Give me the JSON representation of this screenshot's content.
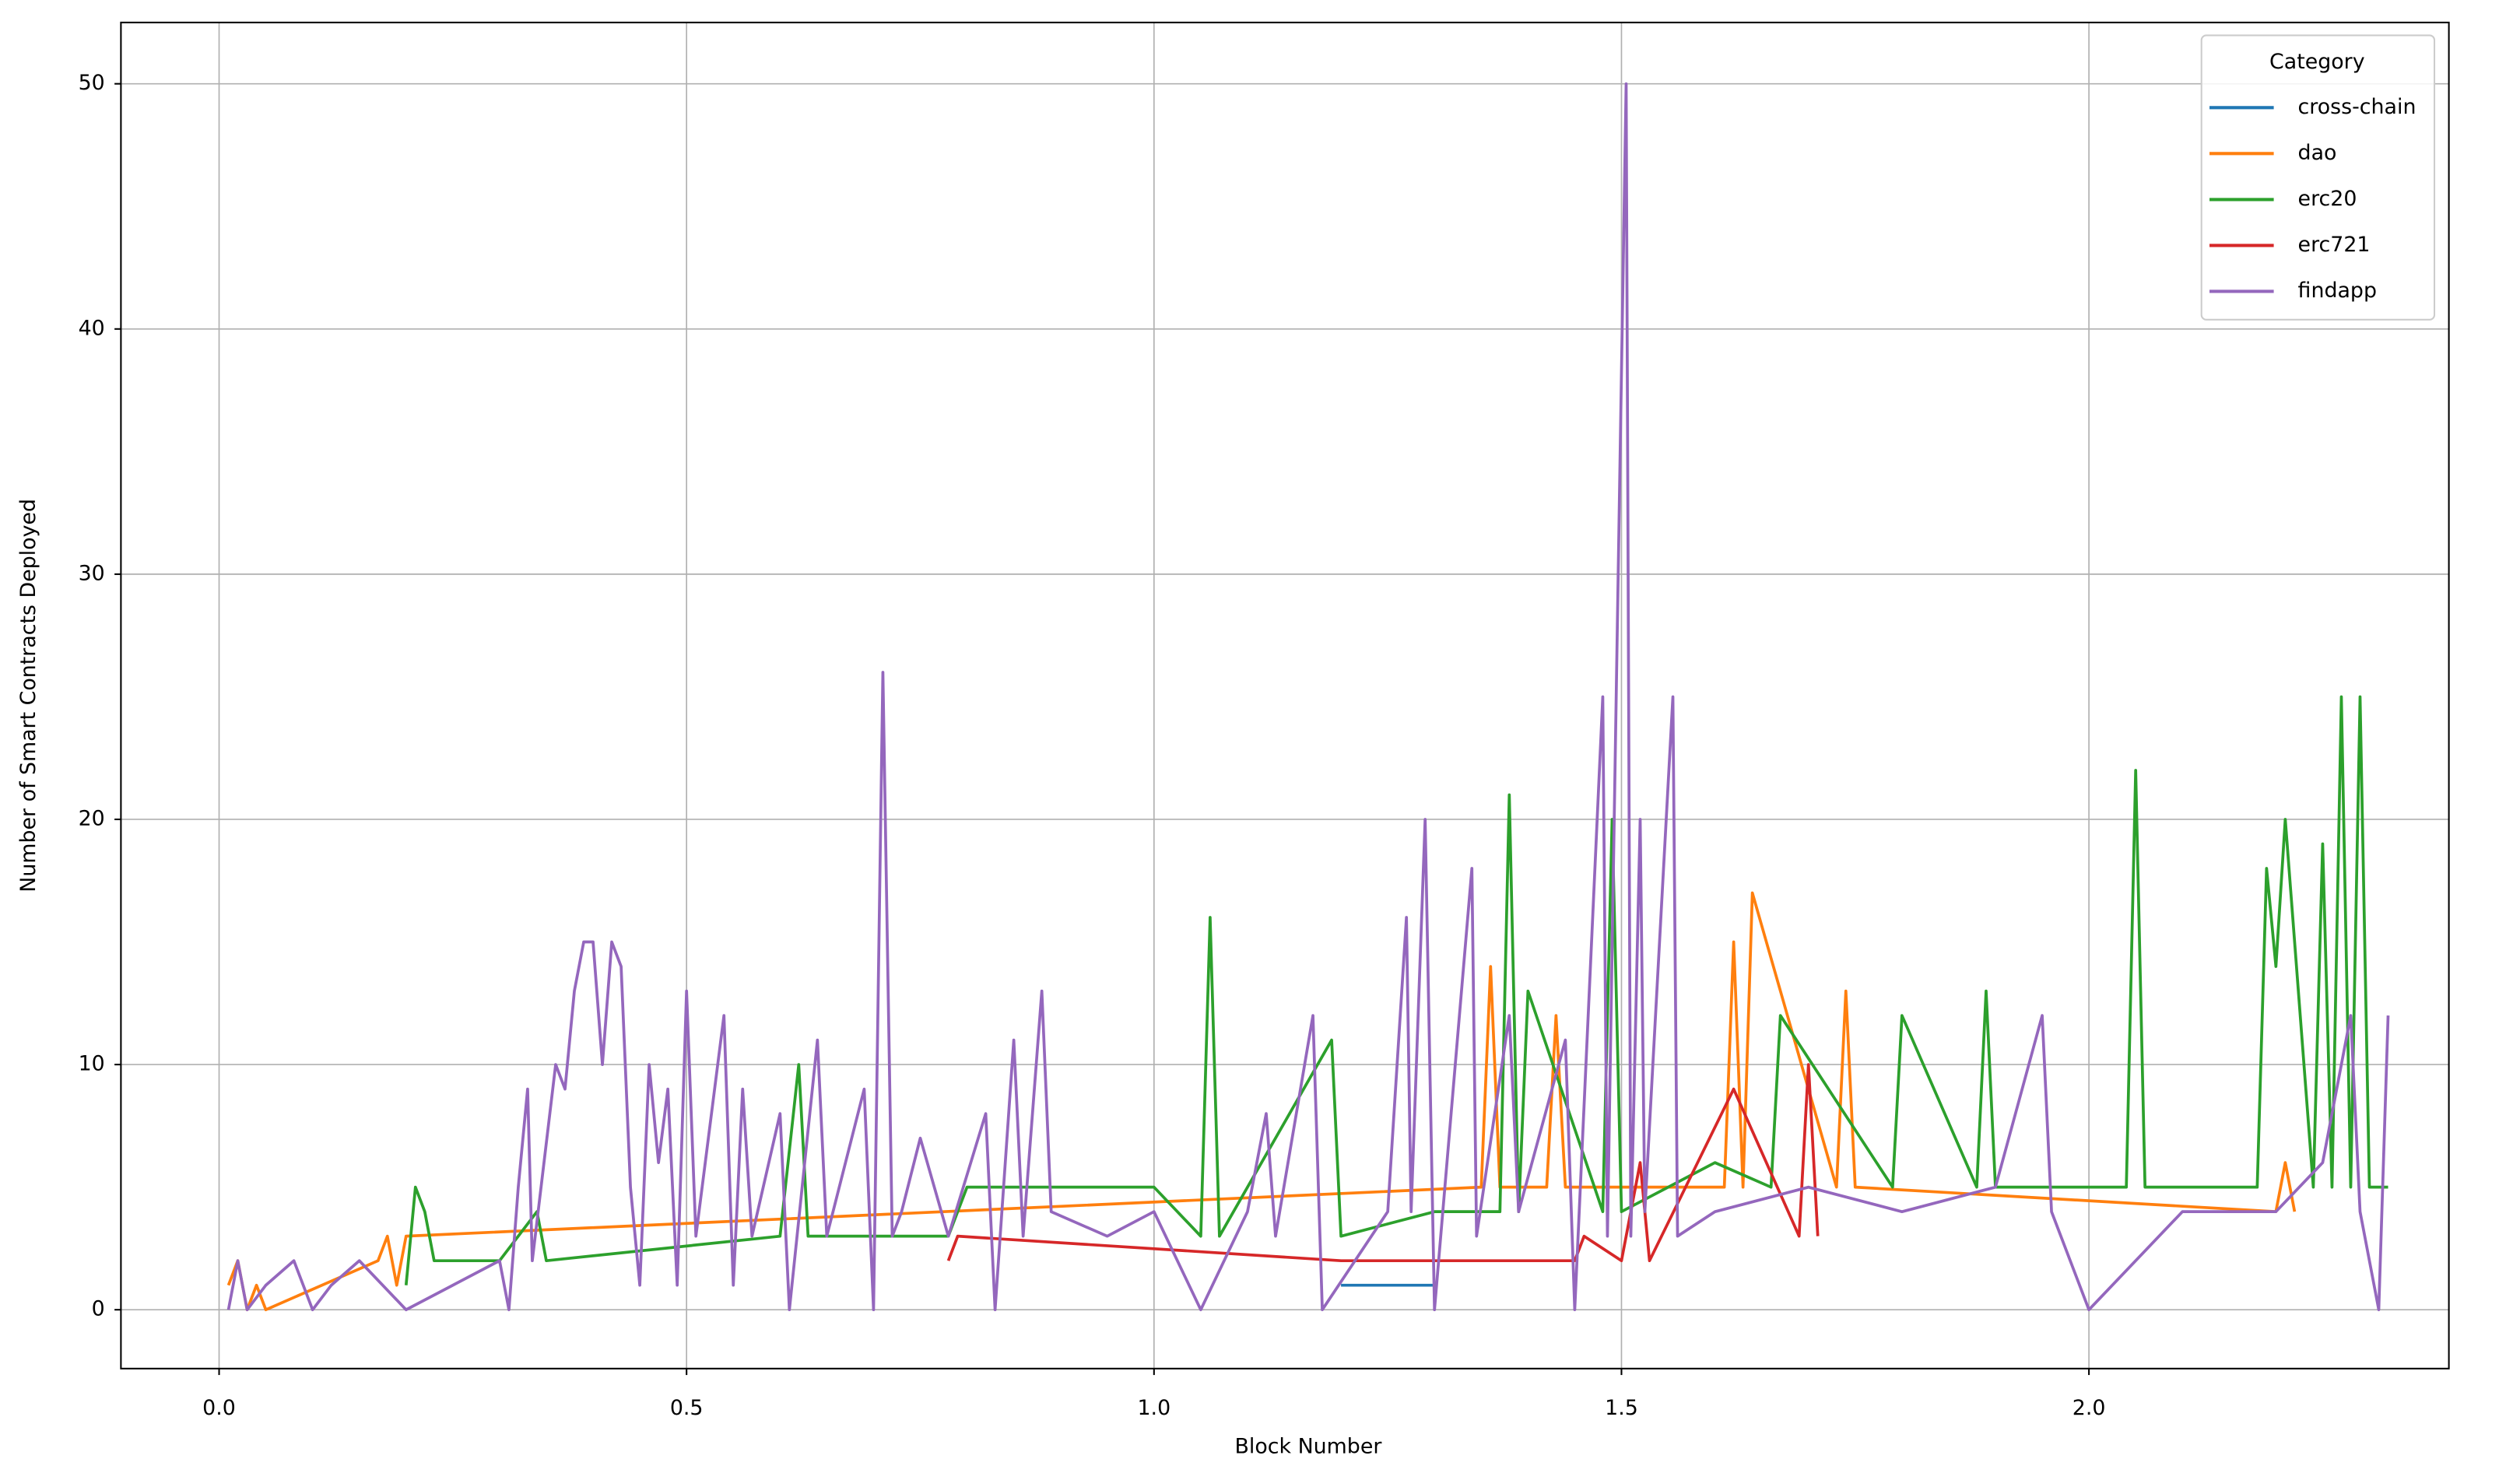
{
  "chart_data": {
    "type": "line",
    "xlabel": "Block Number",
    "ylabel": "Number of Smart Contracts Deployed",
    "legend_title": "Category",
    "legend": "upper right",
    "grid": true,
    "xlim": [
      -0.105,
      2.385
    ],
    "ylim": [
      -2.4,
      52.5
    ],
    "xticks": [
      {
        "value": 0,
        "label": "0.0"
      },
      0.5,
      {
        "value": 1,
        "label": "1.0"
      },
      1.5,
      {
        "value": 2,
        "label": "2.0"
      }
    ],
    "yticks": [
      0,
      10,
      20,
      30,
      40,
      50
    ],
    "series": [
      {
        "name": "cross-chain",
        "color": "#1f77b4",
        "x": [
          1.2,
          1.3
        ],
        "values": [
          1,
          1
        ]
      },
      {
        "name": "dao",
        "color": "#ff7f0e",
        "x": [
          0.01,
          0.02,
          0.03,
          0.04,
          0.05,
          0.17,
          0.18,
          0.19,
          0.2,
          1.35,
          1.36,
          1.37,
          1.42,
          1.43,
          1.44,
          1.61,
          1.62,
          1.63,
          1.64,
          1.73,
          1.74,
          1.75,
          2.2,
          2.21,
          2.22
        ],
        "values": [
          1,
          2,
          0,
          1,
          0,
          2,
          3,
          1,
          3,
          5,
          14,
          5,
          5,
          12,
          5,
          5,
          15,
          5,
          17,
          5,
          13,
          5,
          4,
          6,
          4
        ]
      },
      {
        "name": "erc20",
        "color": "#2ca02c",
        "x": [
          0.2,
          0.21,
          0.22,
          0.23,
          0.3,
          0.34,
          0.35,
          0.6,
          0.62,
          0.63,
          0.78,
          0.8,
          1.0,
          1.05,
          1.06,
          1.07,
          1.19,
          1.2,
          1.3,
          1.37,
          1.38,
          1.39,
          1.4,
          1.48,
          1.49,
          1.5,
          1.6,
          1.66,
          1.67,
          1.79,
          1.8,
          1.88,
          1.89,
          1.9,
          2.04,
          2.05,
          2.06,
          2.18,
          2.19,
          2.2,
          2.21,
          2.24,
          2.25,
          2.26,
          2.27,
          2.28,
          2.29,
          2.3,
          2.32
        ],
        "values": [
          1,
          5,
          4,
          2,
          2,
          4,
          2,
          3,
          10,
          3,
          3,
          5,
          5,
          3,
          16,
          3,
          11,
          3,
          4,
          4,
          21,
          4,
          13,
          4,
          20,
          4,
          6,
          5,
          12,
          5,
          12,
          5,
          13,
          5,
          5,
          22,
          5,
          5,
          18,
          14,
          20,
          5,
          19,
          5,
          25,
          5,
          25,
          5,
          5
        ]
      },
      {
        "name": "erc721",
        "color": "#d62728",
        "x": [
          0.78,
          0.79,
          1.2,
          1.45,
          1.46,
          1.5,
          1.52,
          1.53,
          1.62,
          1.69,
          1.7,
          1.71
        ],
        "values": [
          2,
          3,
          2,
          2,
          3,
          2,
          6,
          2,
          9,
          3,
          10,
          3
        ]
      },
      {
        "name": "findapp",
        "color": "#9467bd",
        "x": [
          0.01,
          0.02,
          0.03,
          0.05,
          0.08,
          0.1,
          0.12,
          0.15,
          0.2,
          0.25,
          0.3,
          0.31,
          0.32,
          0.33,
          0.335,
          0.36,
          0.37,
          0.38,
          0.39,
          0.4,
          0.41,
          0.42,
          0.43,
          0.44,
          0.45,
          0.46,
          0.47,
          0.48,
          0.49,
          0.5,
          0.51,
          0.54,
          0.55,
          0.56,
          0.57,
          0.6,
          0.61,
          0.64,
          0.65,
          0.69,
          0.7,
          0.71,
          0.72,
          0.73,
          0.75,
          0.78,
          0.82,
          0.83,
          0.85,
          0.86,
          0.88,
          0.89,
          0.95,
          1.0,
          1.05,
          1.1,
          1.12,
          1.13,
          1.17,
          1.18,
          1.25,
          1.27,
          1.275,
          1.29,
          1.3,
          1.34,
          1.345,
          1.38,
          1.39,
          1.44,
          1.45,
          1.48,
          1.485,
          1.505,
          1.51,
          1.52,
          1.525,
          1.555,
          1.56,
          1.6,
          1.7,
          1.8,
          1.9,
          1.95,
          1.96,
          2.0,
          2.1,
          2.2,
          2.25,
          2.28,
          2.29,
          2.31,
          2.32
        ],
        "values": [
          0,
          2,
          0,
          1,
          2,
          0,
          1,
          2,
          0,
          1,
          2,
          0,
          5,
          9,
          2,
          10,
          9,
          13,
          15,
          15,
          10,
          15,
          14,
          5,
          1,
          10,
          6,
          9,
          1,
          13,
          3,
          12,
          1,
          9,
          3,
          8,
          0,
          11,
          3,
          9,
          0,
          26,
          3,
          4,
          7,
          3,
          8,
          0,
          11,
          3,
          13,
          4,
          3,
          4,
          0,
          4,
          8,
          3,
          12,
          0,
          4,
          16,
          4,
          20,
          0,
          18,
          3,
          12,
          4,
          11,
          0,
          25,
          3,
          50,
          3,
          20,
          4,
          25,
          3,
          4,
          5,
          4,
          5,
          12,
          4,
          0,
          4,
          4,
          6,
          12,
          4,
          0,
          12
        ]
      }
    ]
  }
}
